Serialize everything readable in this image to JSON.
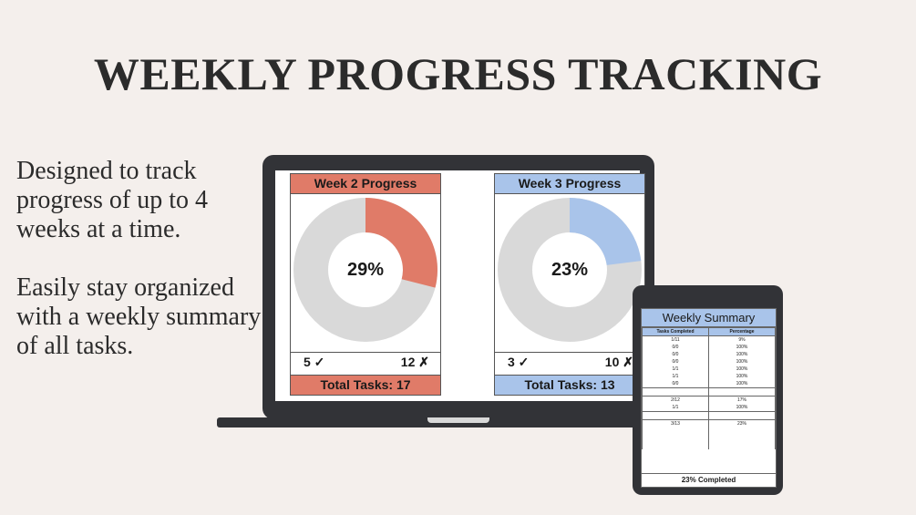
{
  "title": "WEEKLY PROGRESS TRACKING",
  "description": {
    "line1": "Designed to track progress of up to 4 weeks at a time.",
    "line2": "Easily stay organized with a weekly summary of all tasks."
  },
  "colors": {
    "background": "#f4efec",
    "device": "#323337",
    "week2_accent": "#e07b68",
    "week3_accent": "#a9c4ea",
    "donut_rest": "#d9d9d9"
  },
  "cards": [
    {
      "heading": "Week 2 Progress",
      "percent_label": "29%",
      "percent_value": 0.29,
      "done_label": "5 ✓",
      "not_done_label": "12 ✗",
      "total_label": "Total Tasks: 17",
      "accent": "#e07b68"
    },
    {
      "heading": "Week 3 Progress",
      "percent_label": "23%",
      "percent_value": 0.23,
      "done_label": "3 ✓",
      "not_done_label": "10 ✗",
      "total_label": "Total Tasks: 13",
      "accent": "#a9c4ea"
    }
  ],
  "summary": {
    "title": "Weekly Summary",
    "columns": [
      "Tasks Completed",
      "Percentage"
    ],
    "rows": [
      [
        "1/11",
        "9%"
      ],
      [
        "0/0",
        "100%"
      ],
      [
        "0/0",
        "100%"
      ],
      [
        "0/0",
        "100%"
      ],
      [
        "1/1",
        "100%"
      ],
      [
        "1/1",
        "100%"
      ],
      [
        "0/0",
        "100%"
      ],
      [
        "",
        ""
      ],
      [
        "2/12",
        "17%"
      ],
      [
        "1/1",
        "100%"
      ],
      [
        "",
        ""
      ],
      [
        "3/13",
        "23%"
      ],
      [
        "",
        ""
      ],
      [
        "",
        ""
      ],
      [
        "",
        ""
      ]
    ],
    "footer": "23% Completed"
  }
}
